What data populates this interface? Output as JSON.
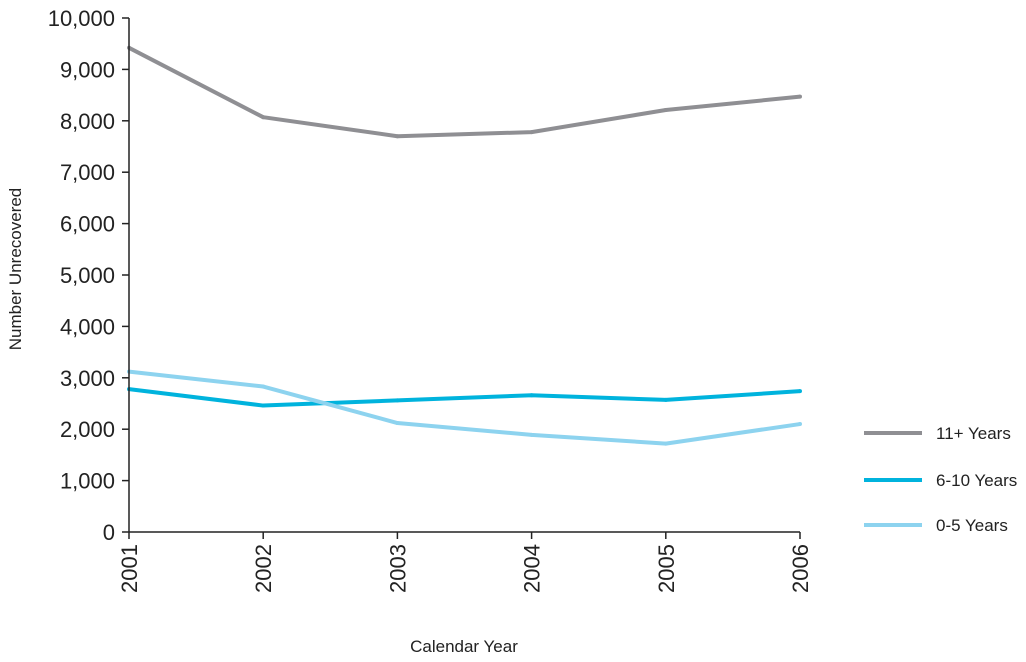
{
  "chart_data": {
    "type": "line",
    "title": "",
    "xlabel": "Calendar Year",
    "ylabel": "Number Unrecovered",
    "ylim": [
      0,
      10000
    ],
    "yticks": [
      "0",
      "1,000",
      "2,000",
      "3,000",
      "4,000",
      "5,000",
      "6,000",
      "7,000",
      "8,000",
      "9,000",
      "10,000"
    ],
    "x": [
      "2001",
      "2002",
      "2003",
      "2004",
      "2005",
      "2006"
    ],
    "grid": false,
    "legend_position": "right",
    "series": [
      {
        "name": "11+ Years",
        "color": "#8f8f93",
        "values": [
          9420,
          8070,
          7700,
          7780,
          8210,
          8470
        ]
      },
      {
        "name": "6-10 Years",
        "color": "#00b3dd",
        "values": [
          2780,
          2460,
          2560,
          2660,
          2570,
          2740
        ]
      },
      {
        "name": "0-5 Years",
        "color": "#8dd3ef",
        "values": [
          3120,
          2830,
          2120,
          1890,
          1720,
          2100
        ]
      }
    ]
  }
}
